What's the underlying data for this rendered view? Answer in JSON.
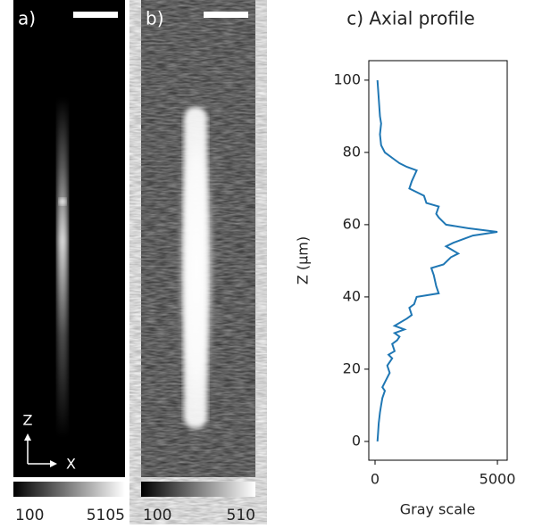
{
  "panels": [
    {
      "label": "a)",
      "colorbar_ticks": [
        100,
        5105
      ]
    },
    {
      "label": "b)",
      "colorbar_ticks": [
        100,
        510
      ]
    }
  ],
  "axis_arrows": {
    "vertical": "Z",
    "horizontal": "X"
  },
  "chart_data": {
    "type": "line",
    "title": "c) Axial profile",
    "x_label": "Gray scale",
    "y_label": "Z (μm)",
    "color": "#1f77b4",
    "z": [
      0,
      2,
      5,
      8,
      10,
      12,
      14,
      15,
      17,
      19,
      21,
      23,
      24,
      25,
      27,
      28,
      29,
      30,
      31,
      32,
      34,
      35,
      37,
      38,
      40,
      41,
      43,
      46,
      48,
      49,
      51,
      52,
      54,
      55,
      57,
      58,
      59,
      60,
      62,
      63,
      65,
      66,
      68,
      70,
      72,
      75,
      76,
      77,
      78,
      80,
      82,
      85,
      88,
      90,
      95,
      100
    ],
    "values": [
      100,
      120,
      150,
      200,
      250,
      300,
      400,
      300,
      450,
      600,
      500,
      700,
      550,
      800,
      700,
      900,
      1000,
      800,
      1200,
      800,
      1300,
      1500,
      1400,
      1600,
      1700,
      2600,
      2500,
      2400,
      2300,
      2800,
      3100,
      3400,
      2900,
      3200,
      4000,
      5000,
      3800,
      2900,
      2600,
      2500,
      2600,
      2100,
      2000,
      1400,
      1500,
      1700,
      1300,
      1000,
      800,
      400,
      250,
      200,
      250,
      200,
      150,
      100
    ],
    "xlim": [
      -255,
      5400
    ],
    "xticks": [
      0,
      5000
    ],
    "ylim": [
      -5.2,
      105.4
    ],
    "yticks": [
      0,
      20,
      40,
      60,
      80,
      100
    ]
  }
}
